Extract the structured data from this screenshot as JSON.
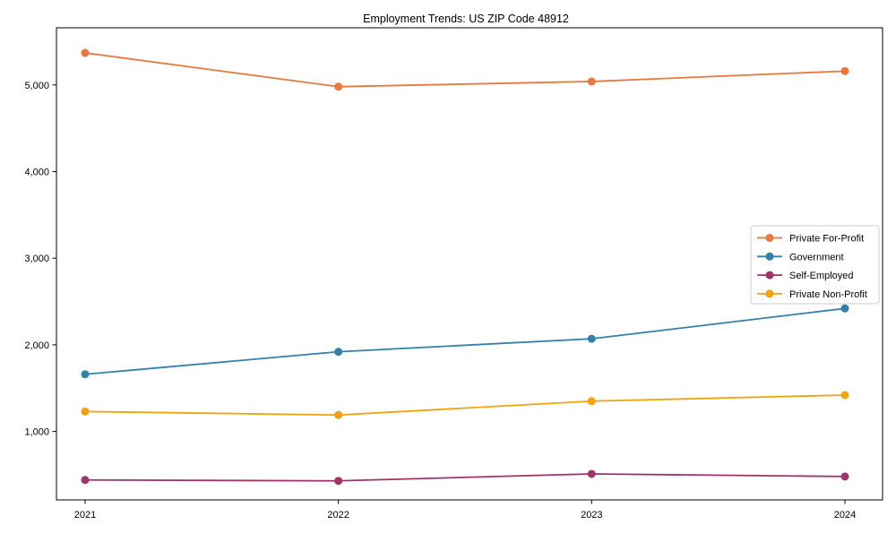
{
  "chart_data": {
    "type": "line",
    "title": "Employment Trends: US ZIP Code 48912",
    "x": [
      2021,
      2022,
      2023,
      2024
    ],
    "x_tick_labels": [
      "2021",
      "2022",
      "2023",
      "2024"
    ],
    "y_ticks": [
      1000,
      2000,
      3000,
      4000,
      5000
    ],
    "y_tick_labels": [
      "1,000",
      "2,000",
      "3,000",
      "4,000",
      "5,000"
    ],
    "ylim": [
      210,
      5660
    ],
    "grid": false,
    "legend_position": "center right",
    "series": [
      {
        "name": "Private For-Profit",
        "color": "#e8793e",
        "values": [
          5370,
          4980,
          5040,
          5160
        ]
      },
      {
        "name": "Government",
        "color": "#3181a9",
        "values": [
          1660,
          1920,
          2070,
          2420
        ]
      },
      {
        "name": "Self-Employed",
        "color": "#a1336b",
        "values": [
          440,
          430,
          510,
          480
        ]
      },
      {
        "name": "Private Non-Profit",
        "color": "#f1a30d",
        "values": [
          1230,
          1190,
          1350,
          1420
        ]
      }
    ]
  }
}
